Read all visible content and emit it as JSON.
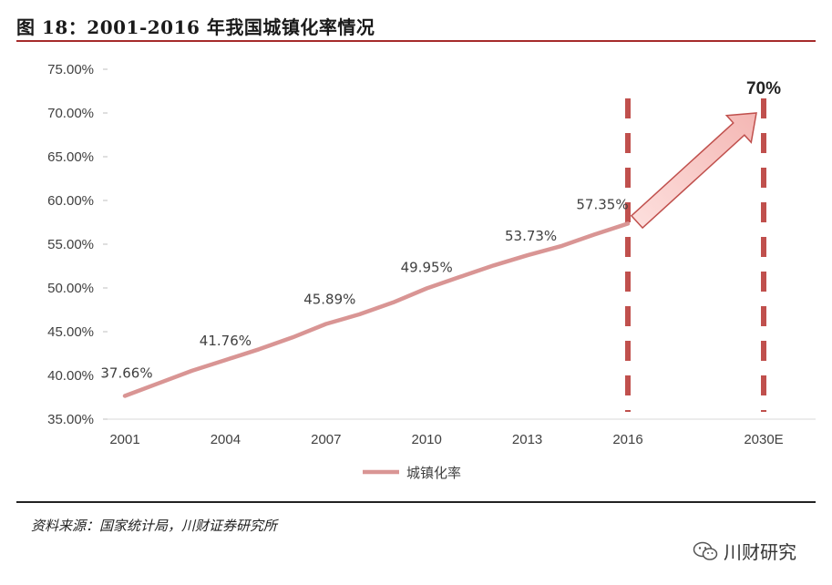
{
  "header": {
    "title": "图 18：2001-2016 年我国城镇化率情况"
  },
  "chart_data": {
    "type": "line",
    "x_labels": [
      "2001",
      "2004",
      "2007",
      "2010",
      "2013",
      "2016",
      "2030E"
    ],
    "series": [
      {
        "name": "城镇化率",
        "color": "#d99594",
        "x": [
          2001,
          2002,
          2003,
          2004,
          2005,
          2006,
          2007,
          2008,
          2009,
          2010,
          2011,
          2012,
          2013,
          2014,
          2015,
          2016
        ],
        "y": [
          37.66,
          39.09,
          40.53,
          41.76,
          42.99,
          44.34,
          45.89,
          46.99,
          48.34,
          49.95,
          51.27,
          52.57,
          53.73,
          54.77,
          56.1,
          57.35
        ]
      }
    ],
    "data_labels": [
      {
        "x": 2001,
        "text": "37.66%"
      },
      {
        "x": 2004,
        "text": "41.76%"
      },
      {
        "x": 2007,
        "text": "45.89%"
      },
      {
        "x": 2010,
        "text": "49.95%"
      },
      {
        "x": 2013,
        "text": "53.73%"
      },
      {
        "x": 2016,
        "text": "57.35%"
      }
    ],
    "y_ticks": [
      "35.00%",
      "40.00%",
      "45.00%",
      "50.00%",
      "55.00%",
      "60.00%",
      "65.00%",
      "70.00%",
      "75.00%"
    ],
    "ylim": [
      35,
      75
    ],
    "projection": {
      "from_x": 2016,
      "from_y": 57.35,
      "to_label": "2030E",
      "to_y": 70,
      "label": "70%"
    },
    "markers": [
      "2016",
      "2030E"
    ],
    "legend": {
      "position": "bottom-center",
      "label": "城镇化率"
    },
    "grid": false
  },
  "footer": {
    "source": "资料来源：国家统计局，川财证券研究所",
    "watermark": "川财研究",
    "watermark_icon": "wechat-icon"
  }
}
